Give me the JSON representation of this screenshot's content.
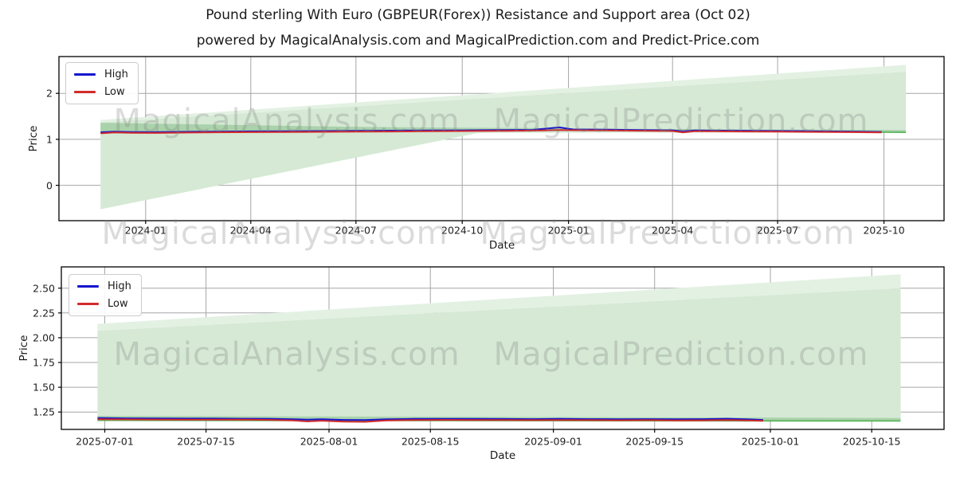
{
  "figure": {
    "title": "Pound sterling With Euro (GBPEUR(Forex)) Resistance and Support area (Oct 02)",
    "subtitle": "powered by MagicalAnalysis.com and MagicalPrediction.com and Predict-Price.com"
  },
  "watermarks": {
    "left": "MagicalAnalysis.com",
    "right": "MagicalPrediction.com"
  },
  "colors": {
    "high": "#1515cf",
    "low": "#d22b2b",
    "support_line": "#5cb55c",
    "fill_main": "#d5e9d5",
    "fill_light": "#e3f1e3",
    "fill_dark": "#aad2ab",
    "grid": "#a6a6a6",
    "spine": "#000000"
  },
  "chart_data": [
    {
      "type": "line",
      "name": "overview",
      "xlabel": "Date",
      "ylabel": "Price",
      "legend": [
        "High",
        "Low"
      ],
      "xdomain": [
        "2023-10-18",
        "2025-11-22"
      ],
      "ydomain": [
        -0.77,
        2.8
      ],
      "grid": true,
      "legend_position": "upper-left",
      "yticks": [
        {
          "v": 0,
          "label": "0"
        },
        {
          "v": 1,
          "label": "1"
        },
        {
          "v": 2,
          "label": "2"
        }
      ],
      "xticks": [
        {
          "date": "2024-01-01",
          "label": "2024-01"
        },
        {
          "date": "2024-04-01",
          "label": "2024-04"
        },
        {
          "date": "2024-07-01",
          "label": "2024-07"
        },
        {
          "date": "2024-10-01",
          "label": "2024-10"
        },
        {
          "date": "2025-01-01",
          "label": "2025-01"
        },
        {
          "date": "2025-04-01",
          "label": "2025-04"
        },
        {
          "date": "2025-07-01",
          "label": "2025-07"
        },
        {
          "date": "2025-10-01",
          "label": "2025-10"
        }
      ],
      "series": {
        "high": [
          [
            "2023-11-23",
            1.152
          ],
          [
            "2023-12-05",
            1.165
          ],
          [
            "2023-12-20",
            1.158
          ],
          [
            "2024-01-10",
            1.155
          ],
          [
            "2024-02-01",
            1.162
          ],
          [
            "2024-03-01",
            1.168
          ],
          [
            "2024-04-01",
            1.172
          ],
          [
            "2024-05-01",
            1.174
          ],
          [
            "2024-06-01",
            1.18
          ],
          [
            "2024-07-01",
            1.184
          ],
          [
            "2024-08-01",
            1.188
          ],
          [
            "2024-09-01",
            1.192
          ],
          [
            "2024-10-01",
            1.196
          ],
          [
            "2024-11-01",
            1.2
          ],
          [
            "2024-12-01",
            1.206
          ],
          [
            "2024-12-24",
            1.26
          ],
          [
            "2025-01-05",
            1.215
          ],
          [
            "2025-02-01",
            1.21
          ],
          [
            "2025-03-01",
            1.202
          ],
          [
            "2025-04-01",
            1.196
          ],
          [
            "2025-04-10",
            1.172
          ],
          [
            "2025-04-20",
            1.193
          ],
          [
            "2025-05-01",
            1.19
          ],
          [
            "2025-06-01",
            1.186
          ],
          [
            "2025-07-01",
            1.181
          ],
          [
            "2025-08-01",
            1.176
          ],
          [
            "2025-09-01",
            1.17
          ],
          [
            "2025-09-29",
            1.16
          ]
        ],
        "low": [
          [
            "2023-11-23",
            1.13
          ],
          [
            "2023-12-05",
            1.148
          ],
          [
            "2023-12-20",
            1.14
          ],
          [
            "2024-01-10",
            1.138
          ],
          [
            "2024-02-01",
            1.145
          ],
          [
            "2024-03-01",
            1.152
          ],
          [
            "2024-04-01",
            1.155
          ],
          [
            "2024-05-01",
            1.157
          ],
          [
            "2024-06-01",
            1.163
          ],
          [
            "2024-07-01",
            1.166
          ],
          [
            "2024-08-01",
            1.17
          ],
          [
            "2024-09-01",
            1.174
          ],
          [
            "2024-10-01",
            1.179
          ],
          [
            "2024-11-01",
            1.183
          ],
          [
            "2024-12-01",
            1.188
          ],
          [
            "2024-12-24",
            1.2
          ],
          [
            "2025-01-05",
            1.197
          ],
          [
            "2025-02-01",
            1.193
          ],
          [
            "2025-03-01",
            1.186
          ],
          [
            "2025-04-01",
            1.179
          ],
          [
            "2025-04-10",
            1.15
          ],
          [
            "2025-04-20",
            1.176
          ],
          [
            "2025-05-01",
            1.174
          ],
          [
            "2025-06-01",
            1.17
          ],
          [
            "2025-07-01",
            1.166
          ],
          [
            "2025-08-01",
            1.161
          ],
          [
            "2025-09-01",
            1.156
          ],
          [
            "2025-09-29",
            1.148
          ]
        ],
        "support": [
          [
            "2025-09-29",
            1.155
          ],
          [
            "2025-10-20",
            1.152
          ]
        ]
      },
      "areas": {
        "below": [
          [
            "2023-11-23",
            -0.52
          ],
          [
            "2024-10-25",
            1.19
          ],
          [
            "2023-11-23",
            1.125
          ]
        ],
        "main": [
          [
            "2023-11-23",
            1.37
          ],
          [
            "2025-10-20",
            2.47
          ],
          [
            "2025-10-20",
            1.152
          ],
          [
            "2023-11-23",
            1.13
          ]
        ],
        "strip": [
          [
            "2023-11-23",
            1.42
          ],
          [
            "2025-10-20",
            2.62
          ],
          [
            "2025-10-20",
            2.47
          ],
          [
            "2023-11-23",
            1.37
          ]
        ],
        "band": [
          [
            "2023-11-23",
            1.36
          ],
          [
            "2024-07-01",
            1.27
          ],
          [
            "2024-12-01",
            1.243
          ],
          [
            "2025-03-01",
            1.228
          ],
          [
            "2025-06-01",
            1.215
          ],
          [
            "2025-09-29",
            1.205
          ],
          [
            "2025-10-20",
            1.2
          ],
          [
            "2025-10-20",
            1.152
          ],
          [
            "2025-09-29",
            1.15
          ],
          [
            "2025-06-01",
            1.165
          ],
          [
            "2024-12-01",
            1.185
          ],
          [
            "2024-07-01",
            1.163
          ],
          [
            "2023-11-23",
            1.125
          ]
        ]
      }
    },
    {
      "type": "line",
      "name": "recent-detail",
      "xlabel": "Date",
      "ylabel": "Price",
      "legend": [
        "High",
        "Low"
      ],
      "xdomain": [
        "2025-06-25",
        "2025-10-25"
      ],
      "ydomain": [
        1.075,
        2.715
      ],
      "grid": true,
      "legend_position": "upper-left",
      "yticks": [
        {
          "v": 1.25,
          "label": "1.25"
        },
        {
          "v": 1.5,
          "label": "1.50"
        },
        {
          "v": 1.75,
          "label": "1.75"
        },
        {
          "v": 2.0,
          "label": "2.00"
        },
        {
          "v": 2.25,
          "label": "2.25"
        },
        {
          "v": 2.5,
          "label": "2.50"
        }
      ],
      "xticks": [
        {
          "date": "2025-07-01",
          "label": "2025-07-01"
        },
        {
          "date": "2025-07-15",
          "label": "2025-07-15"
        },
        {
          "date": "2025-08-01",
          "label": "2025-08-01"
        },
        {
          "date": "2025-08-15",
          "label": "2025-08-15"
        },
        {
          "date": "2025-09-01",
          "label": "2025-09-01"
        },
        {
          "date": "2025-09-15",
          "label": "2025-09-15"
        },
        {
          "date": "2025-10-01",
          "label": "2025-10-01"
        },
        {
          "date": "2025-10-15",
          "label": "2025-10-15"
        }
      ],
      "series": {
        "high": [
          [
            "2025-06-30",
            1.19
          ],
          [
            "2025-07-04",
            1.187
          ],
          [
            "2025-07-08",
            1.185
          ],
          [
            "2025-07-12",
            1.184
          ],
          [
            "2025-07-16",
            1.184
          ],
          [
            "2025-07-20",
            1.183
          ],
          [
            "2025-07-24",
            1.181
          ],
          [
            "2025-07-27",
            1.178
          ],
          [
            "2025-07-29",
            1.173
          ],
          [
            "2025-07-31",
            1.177
          ],
          [
            "2025-08-03",
            1.171
          ],
          [
            "2025-08-06",
            1.169
          ],
          [
            "2025-08-09",
            1.177
          ],
          [
            "2025-08-13",
            1.181
          ],
          [
            "2025-08-17",
            1.182
          ],
          [
            "2025-08-21",
            1.181
          ],
          [
            "2025-08-25",
            1.18
          ],
          [
            "2025-08-29",
            1.179
          ],
          [
            "2025-09-02",
            1.181
          ],
          [
            "2025-09-06",
            1.179
          ],
          [
            "2025-09-10",
            1.178
          ],
          [
            "2025-09-14",
            1.179
          ],
          [
            "2025-09-18",
            1.177
          ],
          [
            "2025-09-22",
            1.179
          ],
          [
            "2025-09-25",
            1.183
          ],
          [
            "2025-09-28",
            1.176
          ],
          [
            "2025-09-30",
            1.171
          ]
        ],
        "low": [
          [
            "2025-06-30",
            1.178
          ],
          [
            "2025-07-04",
            1.176
          ],
          [
            "2025-07-08",
            1.175
          ],
          [
            "2025-07-12",
            1.174
          ],
          [
            "2025-07-16",
            1.174
          ],
          [
            "2025-07-20",
            1.173
          ],
          [
            "2025-07-24",
            1.171
          ],
          [
            "2025-07-27",
            1.166
          ],
          [
            "2025-07-29",
            1.155
          ],
          [
            "2025-07-31",
            1.163
          ],
          [
            "2025-08-03",
            1.153
          ],
          [
            "2025-08-06",
            1.151
          ],
          [
            "2025-08-09",
            1.165
          ],
          [
            "2025-08-13",
            1.17
          ],
          [
            "2025-08-17",
            1.171
          ],
          [
            "2025-08-21",
            1.17
          ],
          [
            "2025-08-25",
            1.169
          ],
          [
            "2025-08-29",
            1.168
          ],
          [
            "2025-09-02",
            1.17
          ],
          [
            "2025-09-06",
            1.168
          ],
          [
            "2025-09-10",
            1.167
          ],
          [
            "2025-09-14",
            1.168
          ],
          [
            "2025-09-18",
            1.166
          ],
          [
            "2025-09-22",
            1.167
          ],
          [
            "2025-09-25",
            1.17
          ],
          [
            "2025-09-28",
            1.165
          ],
          [
            "2025-09-30",
            1.162
          ]
        ],
        "support": [
          [
            "2025-06-30",
            1.167
          ],
          [
            "2025-10-19",
            1.16
          ]
        ]
      },
      "areas": {
        "main": [
          [
            "2025-06-30",
            2.07
          ],
          [
            "2025-10-19",
            2.5
          ],
          [
            "2025-10-19",
            1.16
          ],
          [
            "2025-06-30",
            1.167
          ]
        ],
        "strip": [
          [
            "2025-06-30",
            2.14
          ],
          [
            "2025-10-19",
            2.64
          ],
          [
            "2025-10-19",
            2.5
          ],
          [
            "2025-06-30",
            2.07
          ]
        ],
        "band": [
          [
            "2025-06-30",
            1.212
          ],
          [
            "2025-10-19",
            1.19
          ],
          [
            "2025-10-19",
            1.16
          ],
          [
            "2025-06-30",
            1.166
          ]
        ]
      }
    }
  ]
}
